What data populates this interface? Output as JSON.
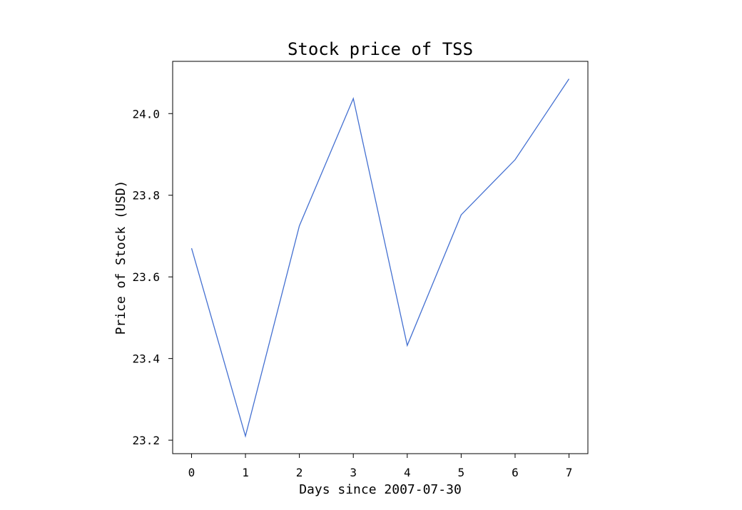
{
  "chart_data": {
    "type": "line",
    "title": "Stock price of TSS",
    "xlabel": "Days since 2007-07-30",
    "ylabel": "Price of Stock (USD)",
    "x": [
      0,
      1,
      2,
      3,
      4,
      5,
      6,
      7
    ],
    "series": [
      {
        "values": [
          23.67,
          23.21,
          23.725,
          24.037,
          23.432,
          23.752,
          23.887,
          24.085
        ],
        "color": "#4470d1"
      }
    ],
    "xticks": [
      0,
      1,
      2,
      3,
      4,
      5,
      6,
      7
    ],
    "yticks": [
      23.2,
      23.4,
      23.6,
      23.8,
      24.0
    ],
    "ytick_labels": [
      "23.2",
      "23.4",
      "23.6",
      "23.8",
      "24.0"
    ],
    "xlim": [
      -0.35,
      7.35
    ],
    "ylim": [
      23.167,
      24.128
    ],
    "grid": false,
    "legend": false
  }
}
